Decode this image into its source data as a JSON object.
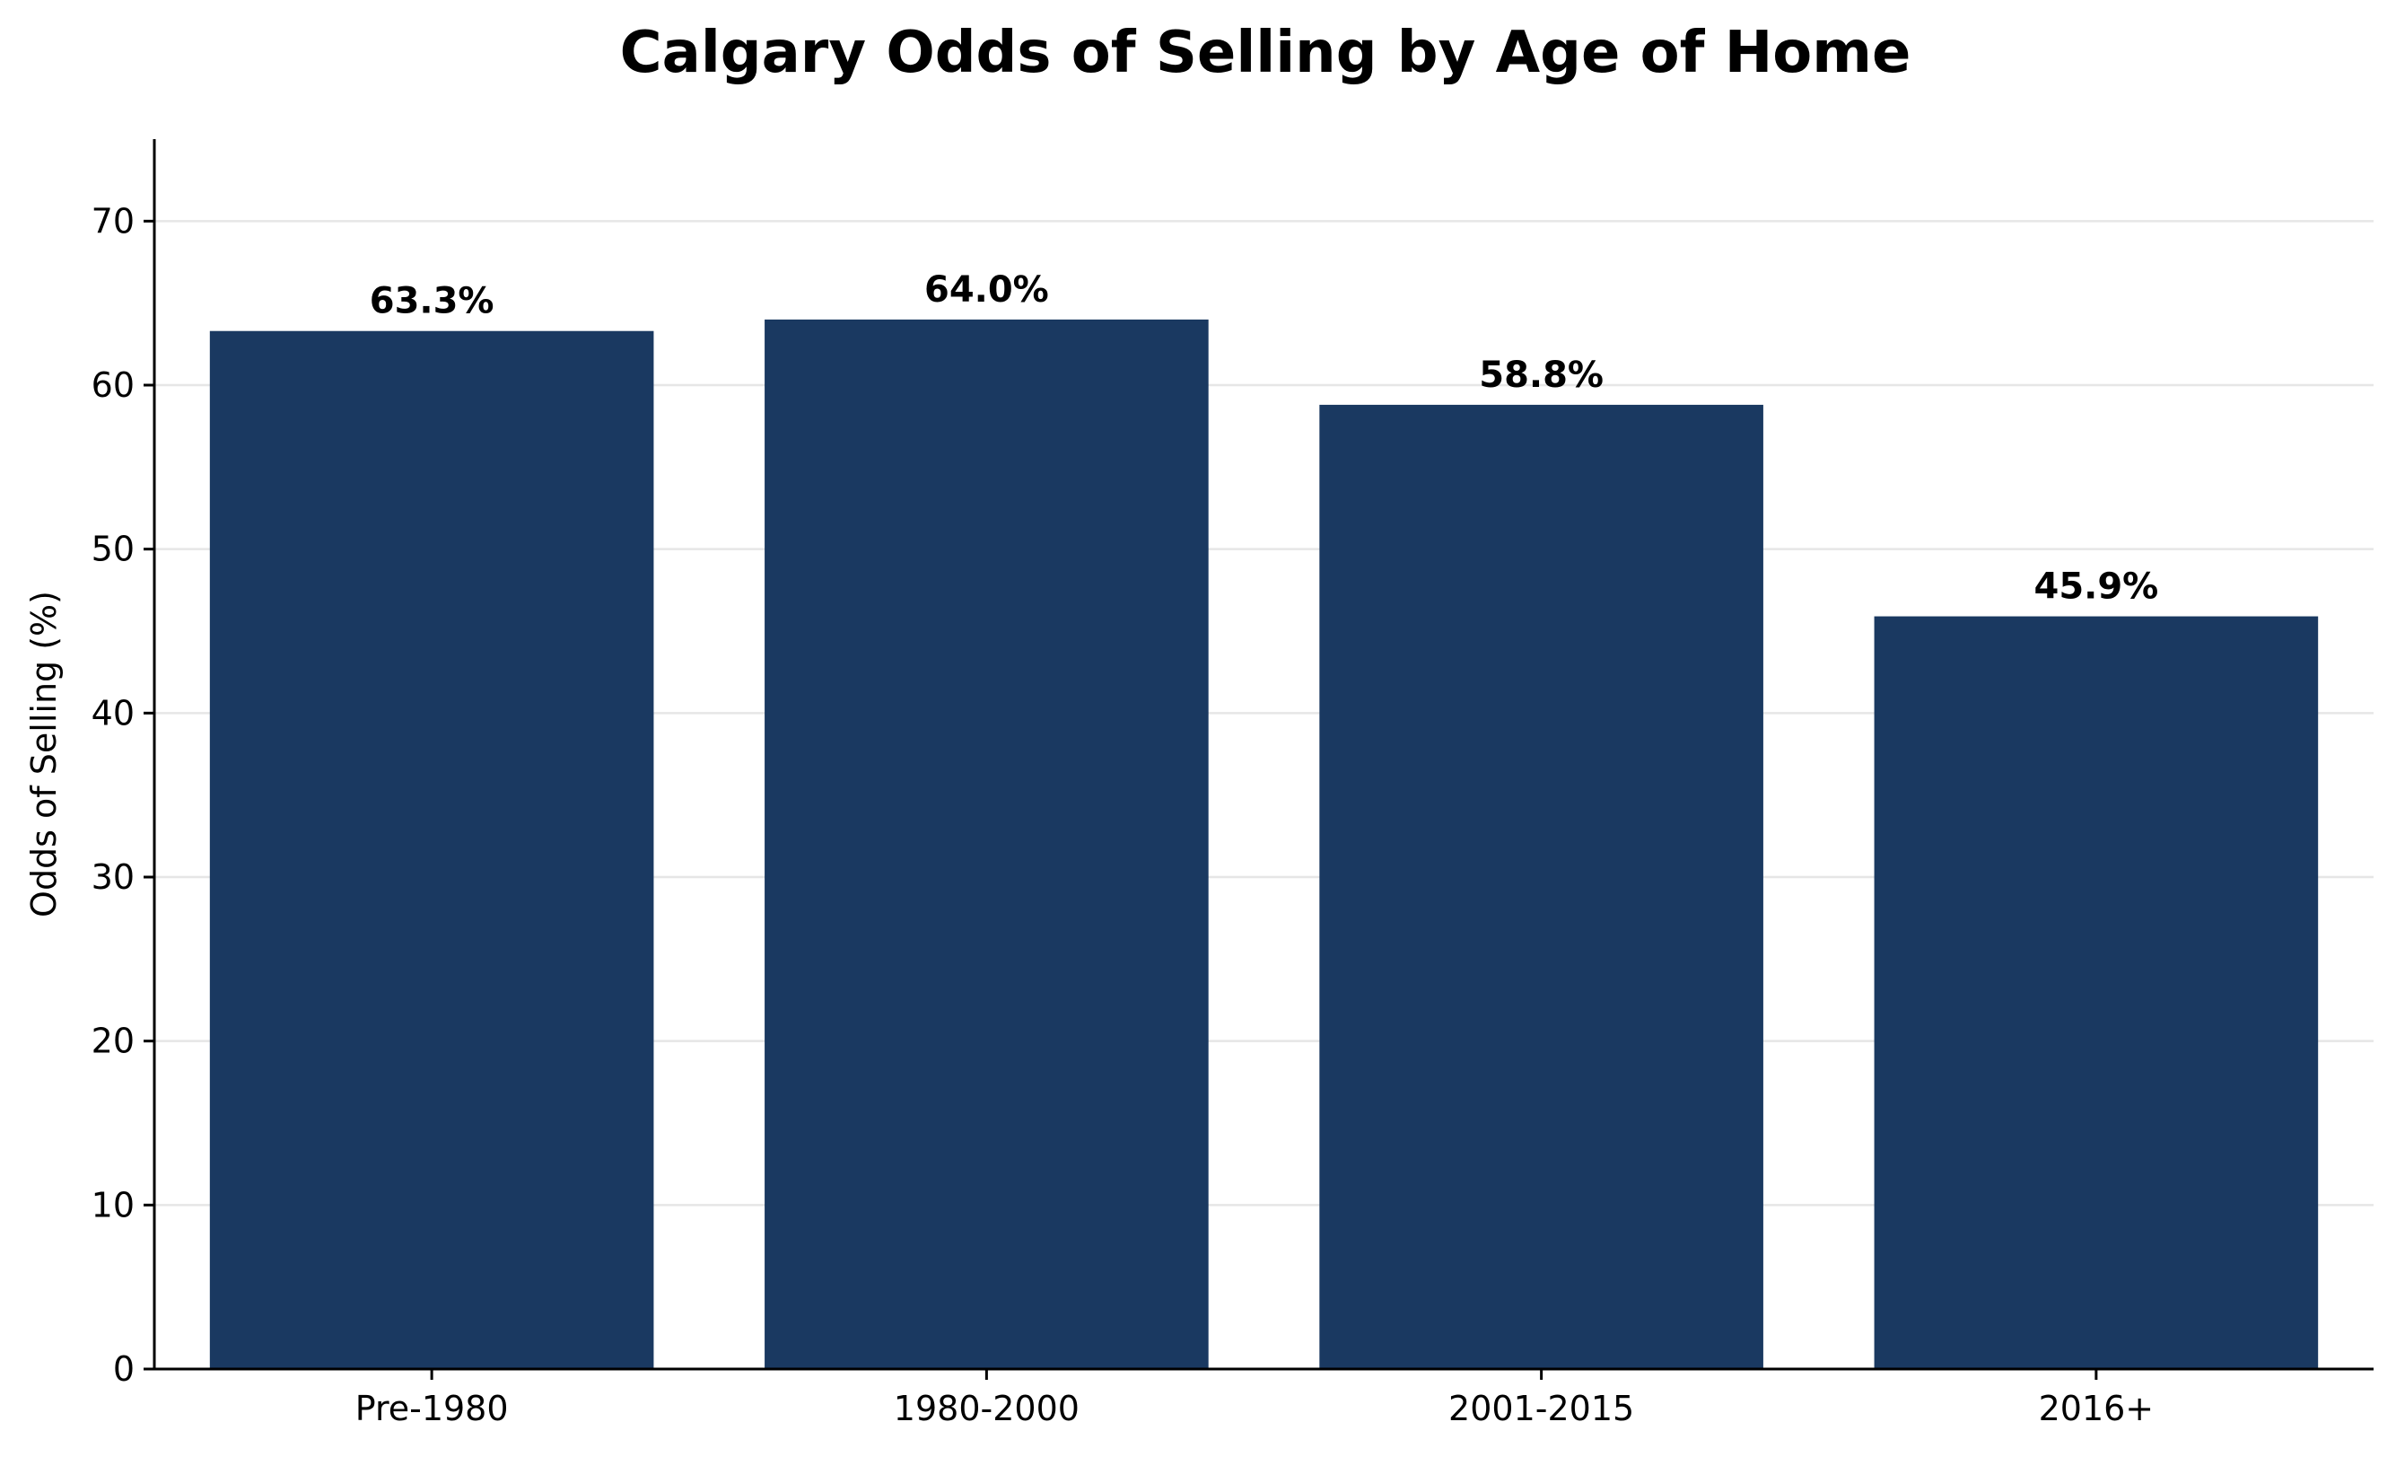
{
  "chart_data": {
    "type": "bar",
    "title": "Calgary Odds of Selling by Age of Home",
    "xlabel": "",
    "ylabel": "Odds of Selling (%)",
    "categories": [
      "Pre-1980",
      "1980-2000",
      "2001-2015",
      "2016+"
    ],
    "values": [
      63.3,
      64.0,
      58.8,
      45.9
    ],
    "value_labels": [
      "63.3%",
      "64.0%",
      "58.8%",
      "45.9%"
    ],
    "ylim": [
      0,
      75
    ],
    "yticks": [
      0,
      10,
      20,
      30,
      40,
      50,
      60,
      70
    ],
    "grid": "horizontal",
    "bar_color": "#1a3961",
    "grid_color": "#e6e6e6"
  }
}
